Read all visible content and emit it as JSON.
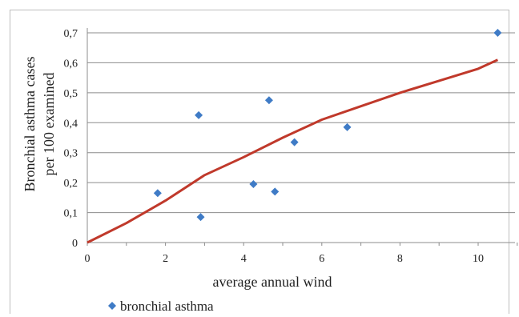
{
  "chart_data": {
    "type": "scatter",
    "ylabel_line1": "Bronchial asthma cases",
    "ylabel_line2": "per 100 examined",
    "xlabel": "average annual wind",
    "xlim": [
      0,
      11
    ],
    "ylim": [
      0,
      0.7
    ],
    "x_ticks": [
      "0",
      "2",
      "4",
      "6",
      "8",
      "10"
    ],
    "x_tick_values": [
      0,
      2,
      4,
      6,
      8,
      10
    ],
    "y_ticks": [
      "0",
      "0,1",
      "0,2",
      "0,3",
      "0,4",
      "0,5",
      "0,6",
      "0,7"
    ],
    "y_tick_values": [
      0,
      0.1,
      0.2,
      0.3,
      0.4,
      0.5,
      0.6,
      0.7
    ],
    "grid": "horizontal",
    "legend_position": "bottom-left",
    "series": [
      {
        "name": "bronchial asthma",
        "marker": "diamond",
        "color": "#3f7bc6",
        "points": [
          {
            "x": 1.8,
            "y": 0.165
          },
          {
            "x": 2.85,
            "y": 0.425
          },
          {
            "x": 2.9,
            "y": 0.085
          },
          {
            "x": 4.25,
            "y": 0.195
          },
          {
            "x": 4.65,
            "y": 0.475
          },
          {
            "x": 4.8,
            "y": 0.17
          },
          {
            "x": 5.3,
            "y": 0.335
          },
          {
            "x": 6.65,
            "y": 0.385
          },
          {
            "x": 10.5,
            "y": 0.7
          }
        ]
      }
    ],
    "trendline": {
      "color": "#c0392b",
      "points": [
        {
          "x": 0,
          "y": 0
        },
        {
          "x": 1,
          "y": 0.065
        },
        {
          "x": 2,
          "y": 0.14
        },
        {
          "x": 3,
          "y": 0.225
        },
        {
          "x": 4,
          "y": 0.285
        },
        {
          "x": 5,
          "y": 0.35
        },
        {
          "x": 6,
          "y": 0.41
        },
        {
          "x": 7,
          "y": 0.455
        },
        {
          "x": 8,
          "y": 0.5
        },
        {
          "x": 9,
          "y": 0.54
        },
        {
          "x": 10,
          "y": 0.58
        },
        {
          "x": 10.5,
          "y": 0.61
        }
      ]
    }
  }
}
